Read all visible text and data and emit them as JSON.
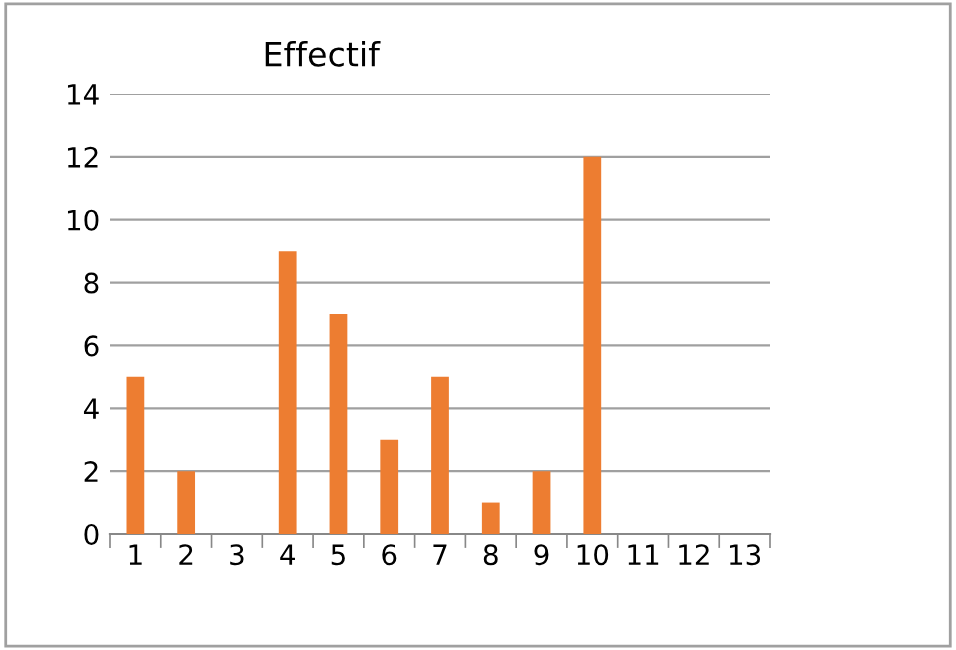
{
  "chart_data": {
    "type": "bar",
    "title": "Effectif",
    "categories": [
      "1",
      "2",
      "3",
      "4",
      "5",
      "6",
      "7",
      "8",
      "9",
      "10",
      "11",
      "12",
      "13"
    ],
    "values": [
      5,
      2,
      0,
      9,
      7,
      3,
      5,
      1,
      2,
      12,
      0,
      0,
      0
    ],
    "color": "#ed7d31",
    "ylim": [
      0,
      14
    ],
    "yticks": [
      0,
      2,
      4,
      6,
      8,
      10,
      12,
      14
    ],
    "grid": "y",
    "legend": false
  }
}
